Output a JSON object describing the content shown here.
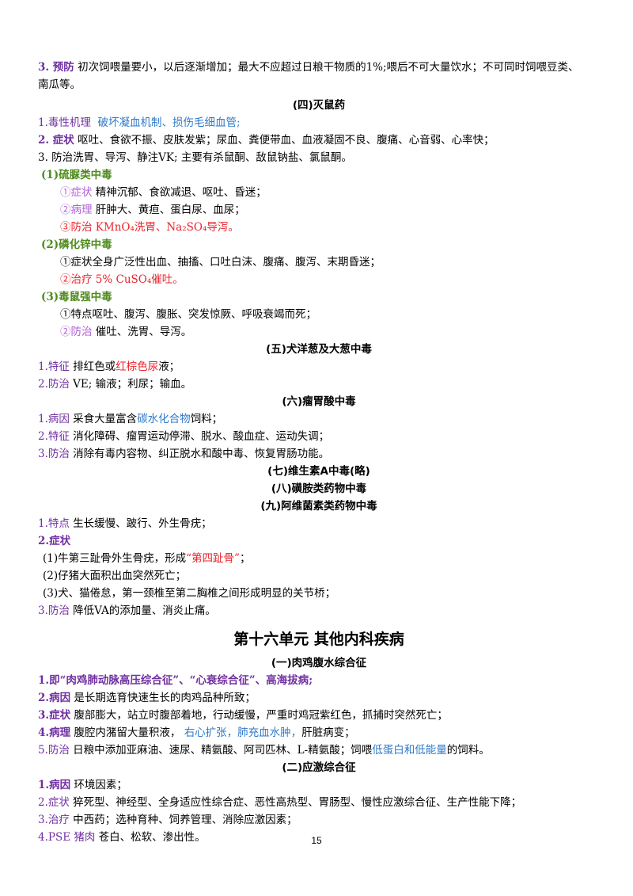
{
  "top": {
    "label": "3. 预防",
    "text1": " 初次饲喂量要小，以后逐渐增加；最大不应超过日粮干物质的1%;喂后不可大量饮水；不可同时饲喂豆类、",
    "text2": "南瓜等。"
  },
  "s4": {
    "title": "(四)灭鼠药",
    "l1_label": "1.毒性机理",
    "l1_val": "破坏凝血机制、损伤毛细血管;",
    "l2_label": "2. 症状",
    "l2_val": " 呕吐、食欲不振、皮肤发紫；尿血、粪便带血、血液凝固不良、腹痛、心音弱、心率快；",
    "l3": "3. 防治洗胃、导泻、静注VK; 主要有杀鼠酮、敌鼠钠盐、氯鼠酮。",
    "a_title": "(1)硫脲类中毒",
    "a1_label": "①症状",
    "a1_val": " 精神沉郁、食欲减退、呕吐、昏迷；",
    "a2_label": "②病理",
    "a2_val": " 肝肿大、黄疸、蛋白尿、血尿；",
    "a3": "③防治 KMnO₄洗胃、Na₂SO₄导泻。",
    "b_title": "(2)磷化锌中毒",
    "b1": "①症状全身广泛性出血、抽搐、口吐白沫、腹痛、腹泻、末期昏迷；",
    "b2": "②治疗 5% CuSO₄催吐。",
    "c_title": "(3)毒鼠强中毒",
    "c1": "①特点呕吐、腹泻、腹胀、突发惊厥、呼吸衰竭而死；",
    "c2_label": "②防治",
    "c2_val": " 催吐、洗胃、导泻。"
  },
  "s5": {
    "title": "(五)犬洋葱及大葱中毒",
    "l1_label": "1.特征",
    "l1_a": "  排红色或",
    "l1_red": "红棕色尿",
    "l1_b": "液；",
    "l2_label": "2.防治",
    "l2_val": " VE; 输液；利尿；输血。"
  },
  "s6": {
    "title": "(六)瘤胃酸中毒",
    "l1_label": "1.病因",
    "l1_a": " 采食大量富含",
    "l1_blue": "碳水化合物",
    "l1_b": "饲料；",
    "l2_label": "2.特征",
    "l2_val": "  消化障碍、瘤胃运动停滞、脱水、酸血症、运动失调；",
    "l3_label": "3.防治",
    "l3_val": " 消除有毒内容物、纠正脱水和酸中毒、恢复胃肠功能。"
  },
  "s7": {
    "title": "(七)维生素A中毒(略)"
  },
  "s8": {
    "title": "(八)磺胺类药物中毒"
  },
  "s9": {
    "title": "(九)阿维菌素类药物中毒",
    "l1_label": "1.特点",
    "l1_val": " 生长缓慢、跛行、外生骨疣；",
    "l2_label": "2.症状",
    "p1_a": "(1)牛第三趾骨外生骨疣，形成",
    "p1_red": "“第四趾骨”",
    "p1_b": "；",
    "p2": "(2)仔猪大面积出血突然死亡；",
    "p3": "(3)犬、猫倦怠，第一颈椎至第二胸椎之间形成明显的关节桥；",
    "l3_label": "3.防治",
    "l3_val": " 降低VA的添加量、消炎止痛。"
  },
  "unit": {
    "title": "第十六单元   其他内科疾病"
  },
  "u1": {
    "title": "(一)肉鸡腹水综合征",
    "l1": "1.即“肉鸡肺动脉高压综合征”、“心衰综合征”、高海拔病;",
    "l2_label": "2.病因",
    "l2_val": " 是长期选育快速生长的肉鸡品种所致；",
    "l3_label": "3.症状",
    "l3_val": " 腹部膨大，站立时腹部着地，行动缓慢，严重时鸡冠紫红色，抓捕时突然死亡；",
    "l4_label": "4.病理",
    "l4_a": " 腹腔内潴留大量积液，   ",
    "l4_blue": "右心扩张，肺充血水肿，",
    "l4_b": "肝脏病变；",
    "l5_label": "5.防治",
    "l5_a": "  日粮中添加亚麻油、速尿、精氨酸、阿司匹林、L-精氨酸；饲喂",
    "l5_blue": "低蛋白和低能量",
    "l5_b": "的饲料。"
  },
  "u2": {
    "title": "(二)应激综合征",
    "l1_label": "1.病因",
    "l1_val": " 环境因素；",
    "l2_label": "2.症状",
    "l2_val": " 猝死型、神经型、全身适应性综合症、恶性高热型、胃肠型、慢性应激综合征、生产性能下降；",
    "l3_label": "3.治疗",
    "l3_val": "  中西药；选种育种、饲养管理、消除应激因素；",
    "l4_label": "4.PSE 猪肉",
    "l4_val": "  苍白、松软、渗出性。"
  },
  "footer": {
    "page_number": "15"
  }
}
